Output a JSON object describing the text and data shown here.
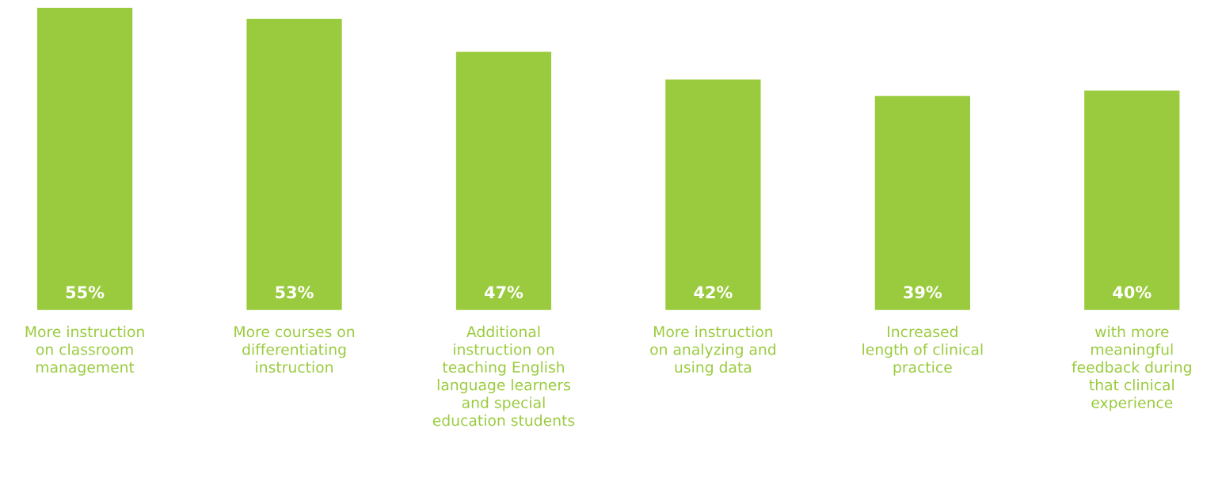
{
  "chart_data": {
    "type": "bar",
    "categories": [
      "More instruction\non classroom\nmanagement",
      "More courses on\ndifferentiating\ninstruction",
      "Additional\ninstruction on\nteaching English\nlanguage learners\nand special\neducation students",
      "More instruction\non analyzing and\nusing data",
      "Increased\nlength of clinical\npractice",
      "with more\nmeaningful\nfeedback during\nthat clinical\nexperience"
    ],
    "values": [
      55,
      53,
      47,
      42,
      39,
      40
    ],
    "value_labels": [
      "55%",
      "53%",
      "47%",
      "42%",
      "39%",
      "40%"
    ],
    "color": "#9acb3e",
    "grid": false,
    "legend": false
  }
}
